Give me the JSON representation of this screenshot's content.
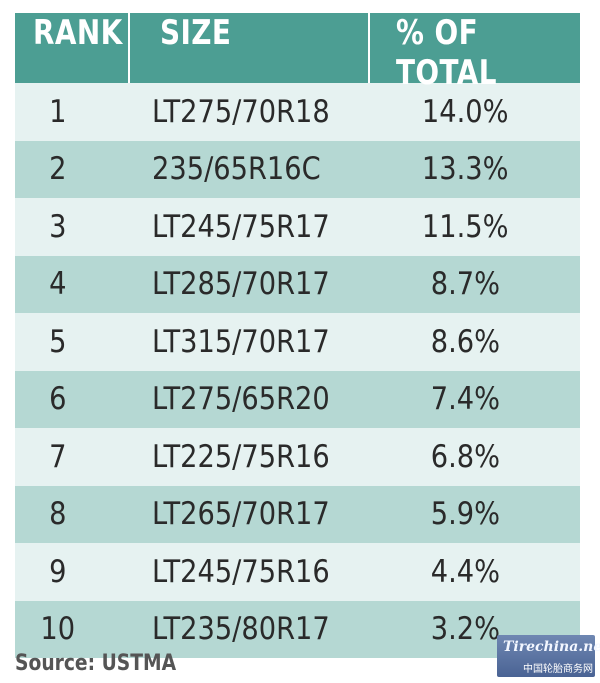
{
  "chart_data": {
    "type": "table",
    "columns": [
      "RANK",
      "SIZE",
      "% OF TOTAL"
    ],
    "rows": [
      {
        "rank": "1",
        "size": "LT275/70R18",
        "pct": "14.0%"
      },
      {
        "rank": "2",
        "size": "235/65R16C",
        "pct": "13.3%"
      },
      {
        "rank": "3",
        "size": "LT245/75R17",
        "pct": "11.5%"
      },
      {
        "rank": "4",
        "size": "LT285/70R17",
        "pct": "8.7%"
      },
      {
        "rank": "5",
        "size": "LT315/70R17",
        "pct": "8.6%"
      },
      {
        "rank": "6",
        "size": "LT275/65R20",
        "pct": "7.4%"
      },
      {
        "rank": "7",
        "size": "LT225/75R16",
        "pct": "6.8%"
      },
      {
        "rank": "8",
        "size": "LT265/70R17",
        "pct": "5.9%"
      },
      {
        "rank": "9",
        "size": "LT245/75R16",
        "pct": "4.4%"
      },
      {
        "rank": "10",
        "size": "LT235/80R17",
        "pct": "3.2%"
      }
    ],
    "source": "Source: USTMA"
  },
  "watermark": {
    "logo_text": "Tirechina.net",
    "sub_text": "中国轮胎商务网"
  },
  "colors": {
    "header_bg": "#4c9e93",
    "row_light": "#e6f2f1",
    "row_dark": "#b5d8d3"
  }
}
